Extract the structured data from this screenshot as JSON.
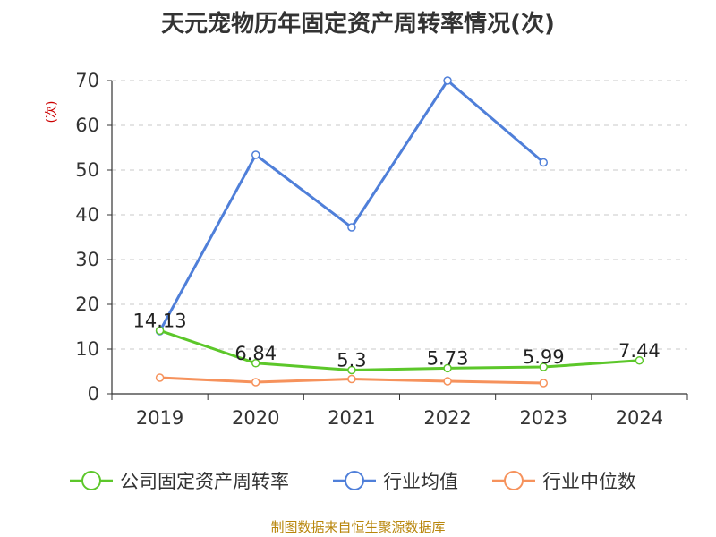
{
  "chart_data": {
    "type": "line",
    "title": "天元宠物历年固定资产周转率情况(次)",
    "ylabel": "(次)",
    "xlabel": "",
    "categories": [
      "2019",
      "2020",
      "2021",
      "2022",
      "2023",
      "2024"
    ],
    "ylim": [
      0,
      70
    ],
    "yticks": [
      0,
      10,
      20,
      30,
      40,
      50,
      60,
      70
    ],
    "grid": true,
    "legend": "bottom",
    "series": [
      {
        "name": "公司固定资产周转率",
        "color": "#5cc72a",
        "values": [
          14.13,
          6.84,
          5.3,
          5.73,
          5.99,
          7.44
        ],
        "labels": [
          "14.13",
          "6.84",
          "5.3",
          "5.73",
          "5.99",
          "7.44"
        ]
      },
      {
        "name": "行业均值",
        "color": "#4f7fd9",
        "values": [
          14.0,
          53.4,
          37.2,
          70.0,
          51.7,
          null
        ]
      },
      {
        "name": "行业中位数",
        "color": "#f6925c",
        "values": [
          3.6,
          2.6,
          3.3,
          2.8,
          2.4,
          null
        ]
      }
    ]
  },
  "source": "制图数据来自恒生聚源数据库"
}
